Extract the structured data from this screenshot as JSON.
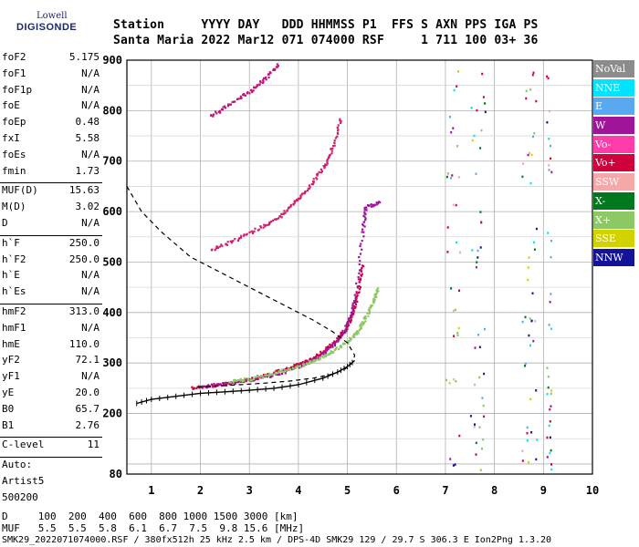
{
  "logo": {
    "line1": "Lowell",
    "line2": "DIGISONDE"
  },
  "header": {
    "row1": "Station     YYYY DAY   DDD HHMMSS P1  FFS S AXN PPS IGA PS",
    "row2": "Santa Maria 2022 Mar12 071 074000 RSF     1 711 100 03+ 36"
  },
  "params": {
    "group1": [
      {
        "k": "foF2",
        "v": "5.175"
      },
      {
        "k": "foF1",
        "v": "N/A"
      },
      {
        "k": "foF1p",
        "v": "N/A"
      },
      {
        "k": "foE",
        "v": "N/A"
      },
      {
        "k": "foEp",
        "v": "0.48"
      },
      {
        "k": "fxI",
        "v": "5.58"
      },
      {
        "k": "foEs",
        "v": "N/A"
      },
      {
        "k": "fmin",
        "v": "1.73"
      }
    ],
    "group2": [
      {
        "k": "MUF(D)",
        "v": "15.63"
      },
      {
        "k": "M(D)",
        "v": "3.02"
      },
      {
        "k": "D",
        "v": "N/A"
      }
    ],
    "group3": [
      {
        "k": "h`F",
        "v": "250.0"
      },
      {
        "k": "h`F2",
        "v": "250.0"
      },
      {
        "k": "h`E",
        "v": "N/A"
      },
      {
        "k": "h`Es",
        "v": "N/A"
      }
    ],
    "group4": [
      {
        "k": "hmF2",
        "v": "313.0"
      },
      {
        "k": "hmF1",
        "v": "N/A"
      },
      {
        "k": "hmE",
        "v": "110.0"
      },
      {
        "k": "yF2",
        "v": "72.1"
      },
      {
        "k": "yF1",
        "v": "N/A"
      },
      {
        "k": "yE",
        "v": "20.0"
      },
      {
        "k": "B0",
        "v": "65.7"
      },
      {
        "k": "B1",
        "v": "2.76"
      }
    ],
    "group5": [
      {
        "k": "C-level",
        "v": "11"
      }
    ],
    "auto": [
      "Auto:",
      "Artist5",
      "500200"
    ]
  },
  "legend": [
    {
      "label": "NoVal",
      "color": "#8c8c8c"
    },
    {
      "label": "NNE",
      "color": "#00e4ff"
    },
    {
      "label": "E",
      "color": "#5aa8f0"
    },
    {
      "label": "W",
      "color": "#a0149a"
    },
    {
      "label": "Vo-",
      "color": "#ff3caa"
    },
    {
      "label": "Vo+",
      "color": "#d0003c"
    },
    {
      "label": "SSW",
      "color": "#f4a8a8"
    },
    {
      "label": "X-",
      "color": "#00781e"
    },
    {
      "label": "X+",
      "color": "#8cc864"
    },
    {
      "label": "SSE",
      "color": "#d2d200"
    },
    {
      "label": "NNW",
      "color": "#14149a"
    }
  ],
  "chart_data": {
    "type": "scatter",
    "xlim": [
      0.5,
      10.0
    ],
    "ylim": [
      80,
      900
    ],
    "x_ticks": [
      1,
      2,
      3,
      4,
      5,
      6,
      7,
      8,
      9,
      10
    ],
    "y_ticks": [
      80,
      200,
      300,
      400,
      500,
      600,
      700,
      800,
      900
    ],
    "grid": true,
    "series": [
      {
        "name": "Vo+",
        "color": "#d0003c",
        "points": [
          [
            1.8,
            253
          ],
          [
            2.2,
            256
          ],
          [
            2.6,
            262
          ],
          [
            3.0,
            270
          ],
          [
            3.4,
            280
          ],
          [
            3.8,
            292
          ],
          [
            4.2,
            308
          ],
          [
            4.5,
            325
          ],
          [
            4.75,
            345
          ],
          [
            4.95,
            370
          ],
          [
            5.1,
            400
          ],
          [
            5.2,
            440
          ],
          [
            5.3,
            500
          ]
        ]
      },
      {
        "name": "W",
        "color": "#a0149a",
        "points": [
          [
            2.0,
            255
          ],
          [
            2.5,
            260
          ],
          [
            3.0,
            268
          ],
          [
            3.5,
            278
          ],
          [
            4.0,
            295
          ],
          [
            4.4,
            315
          ],
          [
            4.7,
            338
          ],
          [
            4.9,
            362
          ],
          [
            5.05,
            392
          ],
          [
            5.15,
            430
          ],
          [
            5.3,
            560
          ],
          [
            5.35,
            610
          ],
          [
            5.65,
            620
          ]
        ]
      },
      {
        "name": "X+",
        "color": "#8cc864",
        "points": [
          [
            2.6,
            265
          ],
          [
            3.0,
            270
          ],
          [
            3.5,
            282
          ],
          [
            4.0,
            295
          ],
          [
            4.4,
            310
          ],
          [
            4.7,
            325
          ],
          [
            5.0,
            345
          ],
          [
            5.2,
            365
          ],
          [
            5.35,
            390
          ],
          [
            5.5,
            420
          ],
          [
            5.6,
            450
          ]
        ]
      },
      {
        "name": "Vo- O2 echo",
        "color": "#d0206e",
        "points": [
          [
            2.2,
            525
          ],
          [
            2.7,
            545
          ],
          [
            3.2,
            570
          ],
          [
            3.6,
            590
          ],
          [
            3.9,
            620
          ],
          [
            4.2,
            650
          ],
          [
            4.5,
            690
          ],
          [
            4.7,
            730
          ],
          [
            4.85,
            790
          ]
        ]
      },
      {
        "name": "W O3 echo",
        "color": "#c0147c",
        "points": [
          [
            2.2,
            790
          ],
          [
            2.6,
            815
          ],
          [
            3.0,
            840
          ],
          [
            3.3,
            865
          ],
          [
            3.6,
            895
          ]
        ]
      }
    ],
    "profile_dashed": [
      [
        0.5,
        650
      ],
      [
        0.8,
        600
      ],
      [
        1.2,
        560
      ],
      [
        1.8,
        510
      ],
      [
        2.5,
        475
      ],
      [
        3.2,
        440
      ],
      [
        3.8,
        410
      ],
      [
        4.3,
        385
      ],
      [
        4.7,
        362
      ],
      [
        5.0,
        340
      ],
      [
        5.15,
        315
      ],
      [
        5.1,
        300
      ],
      [
        4.95,
        288
      ],
      [
        4.7,
        278
      ],
      [
        4.3,
        270
      ],
      [
        3.8,
        264
      ],
      [
        3.3,
        260
      ],
      [
        2.8,
        257
      ],
      [
        2.3,
        254
      ],
      [
        1.9,
        252
      ]
    ],
    "profile_solid": [
      [
        0.7,
        220
      ],
      [
        1.0,
        228
      ],
      [
        1.5,
        234
      ],
      [
        2.0,
        240
      ],
      [
        2.5,
        243
      ],
      [
        3.0,
        246
      ],
      [
        3.5,
        250
      ],
      [
        4.0,
        257
      ],
      [
        4.5,
        270
      ],
      [
        4.8,
        282
      ],
      [
        5.0,
        293
      ],
      [
        5.15,
        305
      ]
    ]
  },
  "bottom": {
    "row1": "D     100  200  400  600  800 1000 1500 3000 [km]",
    "row2": "MUF   5.5  5.5  5.8  6.1  6.7  7.5  9.8 15.6 [MHz]",
    "row3": "SMK29_2022071074000.RSF / 380fx512h 25 kHz 2.5 km / DPS-4D SMK29 129 / 29.7 S 306.3 E Ion2Png 1.3.20"
  }
}
